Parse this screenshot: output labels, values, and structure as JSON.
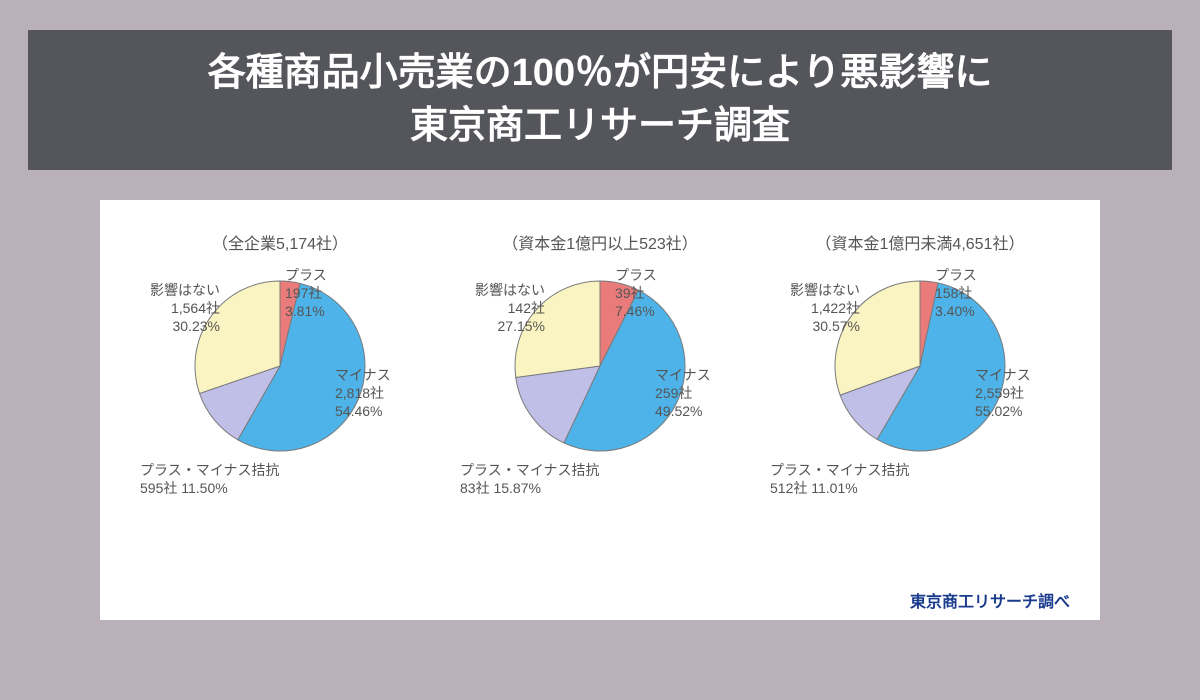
{
  "page_bg": "#b9b0ba",
  "header": {
    "bg": "#55565b",
    "color": "#ffffff",
    "fontsize": 38,
    "line1": "各種商品小売業の100％が円安により悪影響に",
    "line2": "東京商工リサーチ調査"
  },
  "panel_bg": "#ffffff",
  "attribution": {
    "text": "東京商工リサーチ調べ",
    "color": "#1a3b8d",
    "fontsize": 16
  },
  "slice_colors": {
    "plus": "#e97c7b",
    "minus": "#4eb3e8",
    "mixed": "#bfbfe8",
    "none": "#f9f4c2"
  },
  "slice_border": "#7a7a7a",
  "label_color": "#555555",
  "label_fontsize": 14,
  "title_fontsize": 16,
  "pie_radius": 85,
  "charts": [
    {
      "title": "（全企業5,174社）",
      "slices": [
        {
          "key": "plus",
          "pct": 3.81,
          "count": "197社",
          "name": "プラス"
        },
        {
          "key": "minus",
          "pct": 54.46,
          "count": "2,818社",
          "name": "マイナス"
        },
        {
          "key": "mixed",
          "pct": 11.5,
          "count": "595社",
          "name": "プラス・マイナス拮抗"
        },
        {
          "key": "none",
          "pct": 30.23,
          "count": "1,564社",
          "name": "影響はない"
        }
      ],
      "labels": {
        "plus_name": "プラス",
        "plus_count": "197社",
        "plus_pct": "3.81%",
        "minus_name": "マイナス",
        "minus_count": "2,818社",
        "minus_pct": "54.46%",
        "mixed_name": "プラス・マイナス拮抗",
        "mixed_line2": "595社 11.50%",
        "none_name": "影響はない",
        "none_count": "1,564社",
        "none_pct": "30.23%"
      }
    },
    {
      "title": "（資本金1億円以上523社）",
      "slices": [
        {
          "key": "plus",
          "pct": 7.46,
          "count": "39社",
          "name": "プラス"
        },
        {
          "key": "minus",
          "pct": 49.52,
          "count": "259社",
          "name": "マイナス"
        },
        {
          "key": "mixed",
          "pct": 15.87,
          "count": "83社",
          "name": "プラス・マイナス拮抗"
        },
        {
          "key": "none",
          "pct": 27.15,
          "count": "142社",
          "name": "影響はない"
        }
      ],
      "labels": {
        "plus_name": "プラス",
        "plus_count": "39社",
        "plus_pct": "7.46%",
        "minus_name": "マイナス",
        "minus_count": "259社",
        "minus_pct": "49.52%",
        "mixed_name": "プラス・マイナス拮抗",
        "mixed_line2": "83社 15.87%",
        "none_name": "影響はない",
        "none_count": "142社",
        "none_pct": "27.15%"
      }
    },
    {
      "title": "（資本金1億円未満4,651社）",
      "slices": [
        {
          "key": "plus",
          "pct": 3.4,
          "count": "158社",
          "name": "プラス"
        },
        {
          "key": "minus",
          "pct": 55.02,
          "count": "2,559社",
          "name": "マイナス"
        },
        {
          "key": "mixed",
          "pct": 11.01,
          "count": "512社",
          "name": "プラス・マイナス拮抗"
        },
        {
          "key": "none",
          "pct": 30.57,
          "count": "1,422社",
          "name": "影響はない"
        }
      ],
      "labels": {
        "plus_name": "プラス",
        "plus_count": "158社",
        "plus_pct": "3.40%",
        "minus_name": "マイナス",
        "minus_count": "2,559社",
        "minus_pct": "55.02%",
        "mixed_name": "プラス・マイナス拮抗",
        "mixed_line2": "512社 11.01%",
        "none_name": "影響はない",
        "none_count": "1,422社",
        "none_pct": "30.57%"
      }
    }
  ]
}
